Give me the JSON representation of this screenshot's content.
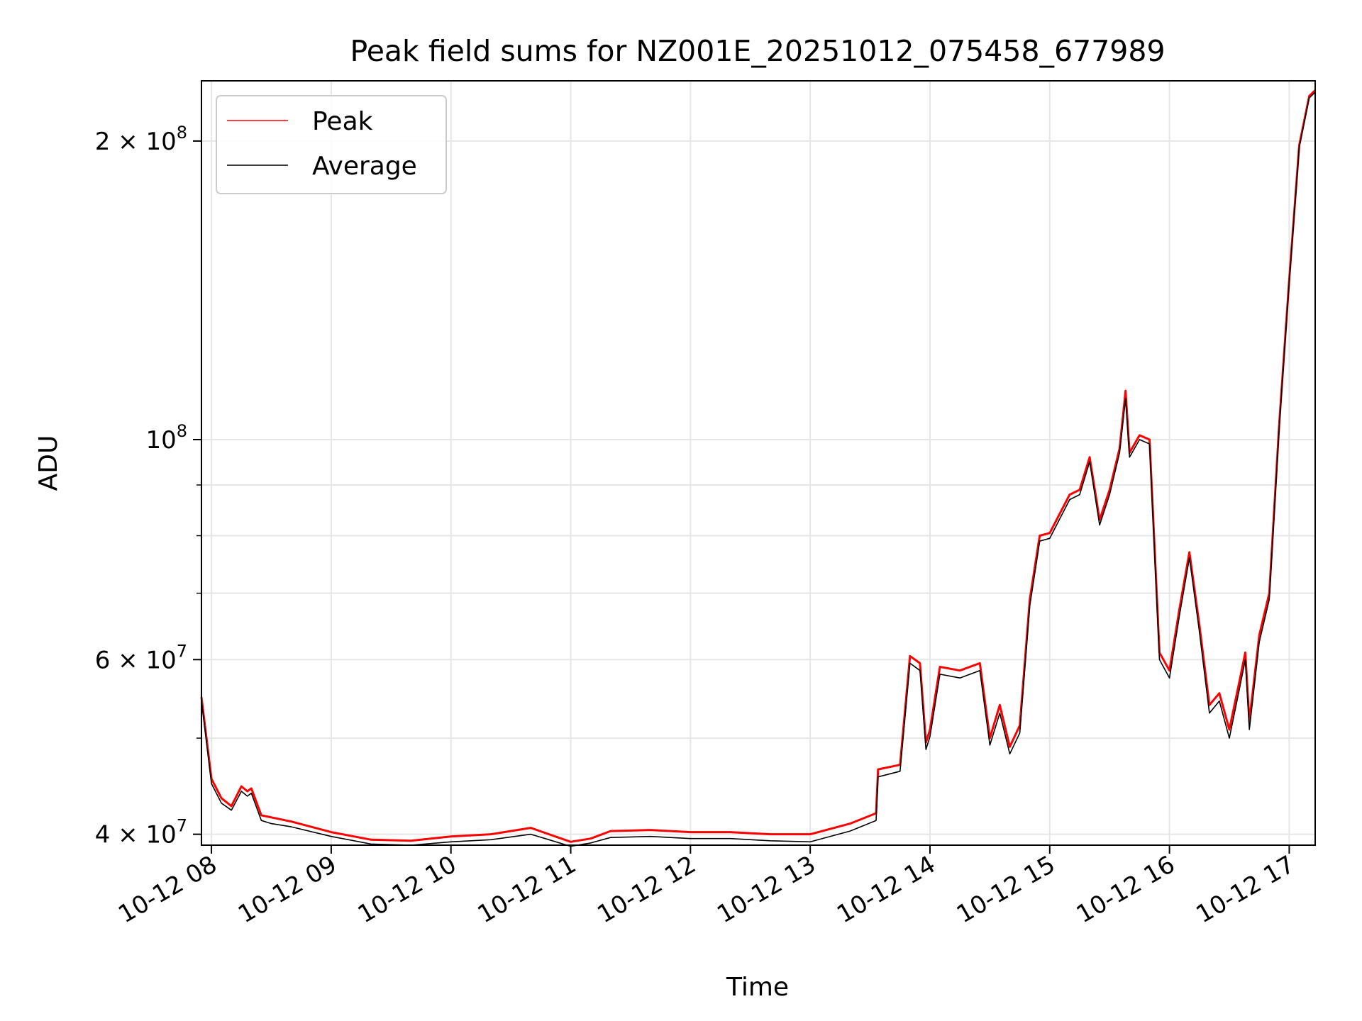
{
  "chart_data": {
    "type": "line",
    "title": "Peak field sums for NZ001E_20251012_075458_677989",
    "xlabel": "Time",
    "ylabel": "ADU",
    "yscale": "log",
    "xlim": [
      "2025-10-12T07:55",
      "2025-10-12T17:13"
    ],
    "ylim": [
      39000000,
      230000000
    ],
    "grid": true,
    "legend": {
      "placement": "top-left"
    },
    "x_ticks": [
      "10-12 08",
      "10-12 09",
      "10-12 10",
      "10-12 11",
      "10-12 12",
      "10-12 13",
      "10-12 14",
      "10-12 15",
      "10-12 16",
      "10-12 17"
    ],
    "y_ticks": [
      {
        "value": 40000000,
        "mantissa": "4",
        "exponent": "7"
      },
      {
        "value": 60000000,
        "mantissa": "6",
        "exponent": "7"
      },
      {
        "value": 100000000,
        "mantissa": "",
        "exponent": "8"
      },
      {
        "value": 200000000,
        "mantissa": "2",
        "exponent": "8"
      }
    ],
    "x": [
      "07:55",
      "08:00",
      "08:05",
      "08:10",
      "08:15",
      "08:18",
      "08:20",
      "08:25",
      "08:30",
      "08:40",
      "09:00",
      "09:20",
      "09:40",
      "10:00",
      "10:20",
      "10:40",
      "11:00",
      "11:10",
      "11:20",
      "11:40",
      "12:00",
      "12:20",
      "12:40",
      "13:00",
      "13:20",
      "13:33",
      "13:34",
      "13:45",
      "13:50",
      "13:55",
      "13:58",
      "14:00",
      "14:05",
      "14:15",
      "14:25",
      "14:30",
      "14:35",
      "14:40",
      "14:45",
      "14:50",
      "14:55",
      "15:00",
      "15:10",
      "15:15",
      "15:20",
      "15:25",
      "15:30",
      "15:35",
      "15:38",
      "15:40",
      "15:45",
      "15:50",
      "15:55",
      "16:00",
      "16:05",
      "16:10",
      "16:15",
      "16:20",
      "16:25",
      "16:30",
      "16:35",
      "16:38",
      "16:40",
      "16:45",
      "16:50",
      "16:55",
      "17:00",
      "17:05",
      "17:10",
      "17:13"
    ],
    "series": [
      {
        "name": "Peak",
        "color": "#ff0000",
        "values": [
          55000000,
          45500000,
          43500000,
          42700000,
          44700000,
          44200000,
          44500000,
          41800000,
          41600000,
          41200000,
          40200000,
          39500000,
          39400000,
          39800000,
          40000000,
          40600000,
          39300000,
          39600000,
          40300000,
          40400000,
          40200000,
          40200000,
          40000000,
          40000000,
          41000000,
          42000000,
          46500000,
          47000000,
          60500000,
          59500000,
          49500000,
          51000000,
          59000000,
          58500000,
          59500000,
          50000000,
          54000000,
          49000000,
          51500000,
          69000000,
          80000000,
          80500000,
          88000000,
          89000000,
          96000000,
          83000000,
          89000000,
          98000000,
          112000000,
          97000000,
          101000000,
          100000000,
          61000000,
          58500000,
          67500000,
          77000000,
          65000000,
          54000000,
          55500000,
          51000000,
          57000000,
          61000000,
          52000000,
          63500000,
          70000000,
          104000000,
          145000000,
          198000000,
          222000000,
          225000000
        ]
      },
      {
        "name": "Average",
        "color": "#000000",
        "values": [
          54500000,
          45000000,
          43000000,
          42300000,
          44200000,
          43700000,
          44000000,
          41300000,
          41000000,
          40700000,
          39800000,
          39100000,
          39000000,
          39300000,
          39500000,
          40000000,
          38900000,
          39200000,
          39700000,
          39800000,
          39600000,
          39600000,
          39400000,
          39300000,
          40300000,
          41300000,
          45700000,
          46300000,
          59500000,
          58500000,
          48700000,
          50200000,
          58000000,
          57500000,
          58500000,
          49200000,
          53000000,
          48200000,
          50600000,
          68000000,
          79000000,
          79500000,
          87000000,
          88000000,
          95000000,
          82000000,
          88000000,
          97000000,
          110000000,
          96000000,
          100000000,
          99000000,
          60000000,
          57500000,
          66500000,
          76000000,
          64000000,
          53000000,
          54500000,
          50000000,
          56000000,
          60000000,
          51000000,
          62500000,
          69000000,
          103000000,
          144000000,
          197000000,
          221000000,
          224000000
        ]
      }
    ]
  }
}
